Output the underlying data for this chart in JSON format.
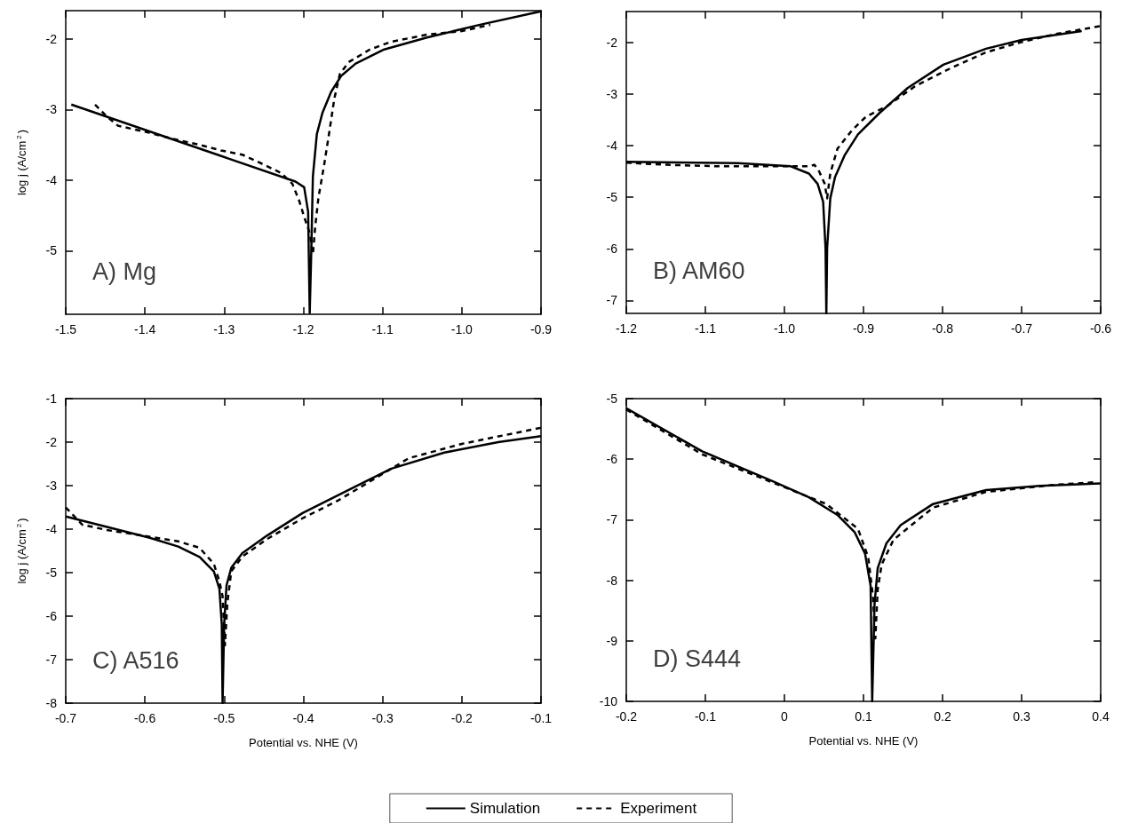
{
  "chart_data": [
    {
      "type": "line",
      "ylabel": "log j (A/cm$^{2}$)",
      "annotations": [
        "A) Mg"
      ],
      "xlim": [
        -1.5,
        -0.9
      ],
      "xticks": [
        -1.5,
        -1.4,
        -1.3,
        -1.2,
        -1.1,
        {
          "value": -1,
          "label": "-1.0"
        },
        -0.9
      ],
      "ylim": [
        -5.9,
        -1.6
      ],
      "yticks": [
        -5,
        -4,
        -3,
        -2
      ],
      "marker": "none",
      "series": [
        {
          "color": "#000000",
          "line_style": "solid",
          "x": [
            -1.493,
            -1.21,
            -1.199,
            -1.194,
            -1.192,
            -1.19,
            -1.188,
            -1.183,
            -1.176,
            -1.165,
            -1.152,
            -1.134,
            -1.098,
            -1.044,
            -0.977,
            -0.9
          ],
          "values": [
            -2.93,
            -4.02,
            -4.1,
            -4.45,
            -5.88,
            -5.0,
            -3.95,
            -3.35,
            -3.05,
            -2.75,
            -2.52,
            -2.35,
            -2.15,
            -1.98,
            -1.8,
            -1.61
          ]
        },
        {
          "color": "#000000",
          "line_style": "dashed",
          "x": [
            -1.463,
            -1.448,
            -1.434,
            -1.394,
            -1.367,
            -1.331,
            -1.304,
            -1.277,
            -1.25,
            -1.228,
            -1.214,
            -1.205,
            -1.199,
            -1.192,
            -1.188,
            -1.185,
            -1.181,
            -1.174,
            -1.167,
            -1.161,
            -1.154,
            -1.143,
            -1.116,
            -1.089,
            -1.044,
            -1.0,
            -0.964
          ],
          "values": [
            -2.93,
            -3.1,
            -3.23,
            -3.33,
            -3.41,
            -3.5,
            -3.58,
            -3.64,
            -3.78,
            -3.9,
            -4.05,
            -4.3,
            -4.52,
            -4.75,
            -5.05,
            -4.65,
            -4.25,
            -3.8,
            -3.3,
            -2.85,
            -2.5,
            -2.33,
            -2.15,
            -2.04,
            -1.94,
            -1.89,
            -1.8
          ]
        }
      ]
    },
    {
      "type": "line",
      "annotations": [
        "B) AM60"
      ],
      "xlim": [
        -1.2,
        -0.6
      ],
      "xticks": [
        -1.2,
        -1.1,
        {
          "value": -1,
          "label": "-1.0"
        },
        -0.9,
        -0.8,
        -0.7,
        -0.6
      ],
      "ylim": [
        -7.25,
        -1.4
      ],
      "yticks": [
        -7,
        -6,
        -5,
        -4,
        -3,
        -2
      ],
      "marker": "none",
      "series": [
        {
          "color": "#000000",
          "line_style": "solid",
          "x": [
            -1.2,
            -1.059,
            -0.992,
            -0.969,
            -0.958,
            -0.951,
            -0.948,
            -0.947,
            -0.946,
            -0.942,
            -0.936,
            -0.924,
            -0.907,
            -0.88,
            -0.844,
            -0.799,
            -0.745,
            -0.7,
            -0.624
          ],
          "values": [
            -4.31,
            -4.34,
            -4.4,
            -4.54,
            -4.74,
            -5.09,
            -5.99,
            -7.25,
            -5.99,
            -5.02,
            -4.61,
            -4.19,
            -3.78,
            -3.37,
            -2.88,
            -2.43,
            -2.12,
            -1.95,
            -1.78
          ]
        },
        {
          "color": "#000000",
          "line_style": "dashed",
          "x": [
            -1.2,
            -1.149,
            -1.082,
            -1.014,
            -0.969,
            -0.962,
            -0.956,
            -0.949,
            -0.946,
            -0.942,
            -0.933,
            -0.915,
            -0.897,
            -0.87,
            -0.835,
            -0.79,
            -0.745,
            -0.7,
            -0.655,
            -0.6
          ],
          "values": [
            -4.33,
            -4.37,
            -4.4,
            -4.4,
            -4.4,
            -4.37,
            -4.5,
            -4.74,
            -5.02,
            -4.54,
            -4.06,
            -3.71,
            -3.44,
            -3.23,
            -2.85,
            -2.5,
            -2.19,
            -1.99,
            -1.83,
            -1.68
          ]
        }
      ]
    },
    {
      "type": "line",
      "ylabel": "log j (A/cm$^{2}$)",
      "xlabel": "Potential vs. NHE (V)",
      "annotations": [
        "C) A516"
      ],
      "legend": "bottom",
      "xlim": [
        -0.7,
        -0.1
      ],
      "xticks": [
        -0.7,
        -0.6,
        -0.5,
        -0.4,
        -0.3,
        -0.2,
        -0.1
      ],
      "ylim": [
        -8,
        -1
      ],
      "yticks": [
        -8,
        -7,
        -6,
        -5,
        -4,
        -3,
        -2,
        -1
      ],
      "marker": "none",
      "series": [
        {
          "name": "Simulation",
          "color": "#000000",
          "line_style": "solid",
          "x": [
            -0.7,
            -0.648,
            -0.594,
            -0.558,
            -0.531,
            -0.513,
            -0.506,
            -0.503,
            -0.502,
            -0.5,
            -0.497,
            -0.491,
            -0.477,
            -0.446,
            -0.401,
            -0.334,
            -0.289,
            -0.222,
            -0.154,
            -0.1
          ],
          "values": [
            -3.71,
            -3.95,
            -4.2,
            -4.4,
            -4.64,
            -4.97,
            -5.37,
            -6.19,
            -8,
            -6.19,
            -5.29,
            -4.89,
            -4.55,
            -4.15,
            -3.63,
            -3.02,
            -2.61,
            -2.24,
            -2.0,
            -1.86
          ]
        },
        {
          "name": "Experiment",
          "color": "#000000",
          "line_style": "dashed",
          "x": [
            -0.7,
            -0.679,
            -0.648,
            -0.603,
            -0.558,
            -0.531,
            -0.513,
            -0.506,
            -0.502,
            -0.499,
            -0.496,
            -0.491,
            -0.477,
            -0.446,
            -0.401,
            -0.356,
            -0.311,
            -0.267,
            -0.2,
            -0.1
          ],
          "values": [
            -3.5,
            -3.9,
            -4.02,
            -4.15,
            -4.28,
            -4.43,
            -4.8,
            -5.2,
            -5.54,
            -6.67,
            -5.7,
            -4.97,
            -4.63,
            -4.23,
            -3.75,
            -3.34,
            -2.85,
            -2.37,
            -2.04,
            -1.67
          ]
        }
      ]
    },
    {
      "type": "line",
      "xlabel": "Potential vs. NHE (V)",
      "annotations": [
        "D) S444"
      ],
      "xlim": [
        -0.2,
        0.4
      ],
      "xticks": [
        -0.2,
        -0.1,
        0,
        0.1,
        0.2,
        0.3,
        0.4
      ],
      "ylim": [
        -10,
        -5
      ],
      "yticks": [
        -10,
        -9,
        -8,
        -7,
        -6,
        -5
      ],
      "marker": "none",
      "series": [
        {
          "color": "#000000",
          "line_style": "solid",
          "x": [
            -0.2,
            -0.104,
            -0.014,
            0.031,
            0.067,
            0.089,
            0.102,
            0.109,
            0.111,
            0.114,
            0.118,
            0.129,
            0.147,
            0.188,
            0.255,
            0.323,
            0.4
          ],
          "values": [
            -5.16,
            -5.87,
            -6.37,
            -6.63,
            -6.92,
            -7.21,
            -7.56,
            -8.09,
            -10,
            -8.39,
            -7.8,
            -7.39,
            -7.09,
            -6.74,
            -6.51,
            -6.44,
            -6.4
          ]
        },
        {
          "color": "#000000",
          "line_style": "dashed",
          "x": [
            -0.2,
            -0.104,
            -0.014,
            0.053,
            0.093,
            0.106,
            0.112,
            0.115,
            0.118,
            0.123,
            0.138,
            0.188,
            0.255,
            0.345,
            0.395
          ],
          "values": [
            -5.18,
            -5.92,
            -6.39,
            -6.74,
            -7.15,
            -7.62,
            -8.27,
            -8.96,
            -8.15,
            -7.74,
            -7.33,
            -6.8,
            -6.54,
            -6.42,
            -6.38
          ]
        }
      ]
    }
  ]
}
